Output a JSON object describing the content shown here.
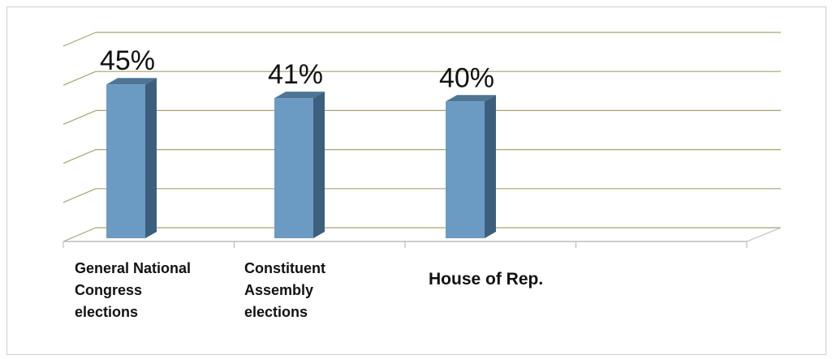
{
  "chart_data": {
    "type": "bar",
    "categories": [
      "General National Congress elections",
      "Constituent Assembly elections",
      "House of Rep."
    ],
    "category_lines": [
      [
        "General National",
        "Congress",
        "elections"
      ],
      [
        "Constituent",
        "Assembly",
        "elections"
      ],
      [
        "House of Rep."
      ]
    ],
    "values": [
      45,
      41,
      40
    ],
    "data_labels": [
      "45%",
      "41%",
      "40%"
    ],
    "title": "",
    "xlabel": "",
    "ylabel": "",
    "ylim": [
      0,
      60
    ],
    "style": "3d-column",
    "grid": true,
    "legend": "none",
    "colors": {
      "bar_front": "#6b9bc3",
      "bar_side": "#3d5f7e",
      "bar_top": "#4f7594",
      "grid": "#a8a270",
      "axis": "#bdbdbd"
    }
  }
}
